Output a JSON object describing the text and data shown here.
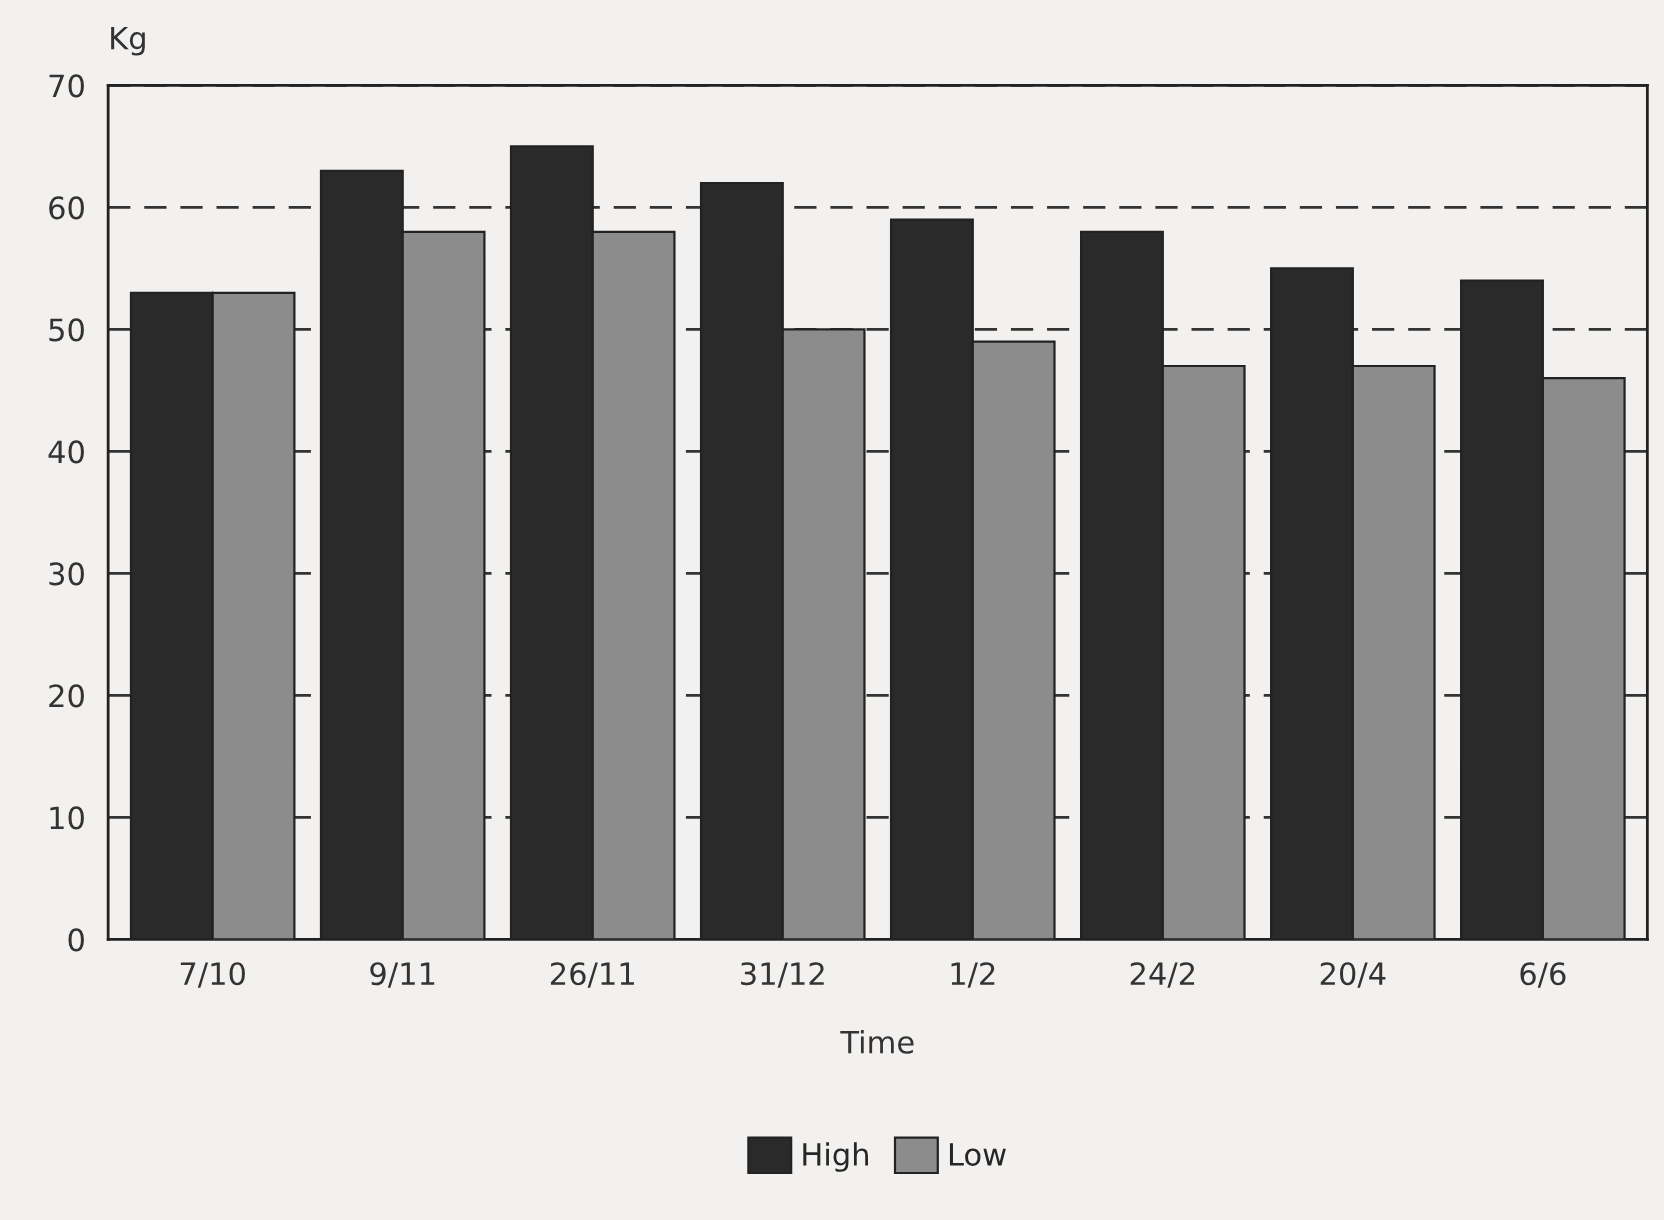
{
  "chart_data": {
    "type": "bar",
    "xlabel": "Time",
    "ylabel": "Kg",
    "categories": [
      "7/10",
      "9/11",
      "26/11",
      "31/12",
      "1/2",
      "24/2",
      "20/4",
      "6/6"
    ],
    "series": [
      {
        "name": "High",
        "color": "#2a2a2a",
        "values": [
          53,
          63,
          65,
          62,
          59,
          58,
          55,
          54
        ]
      },
      {
        "name": "Low",
        "color": "#8c8c8c",
        "values": [
          53,
          58,
          58,
          50,
          49,
          47,
          47,
          46
        ]
      }
    ],
    "ylim": [
      0,
      70
    ],
    "yticks": [
      0,
      10,
      20,
      30,
      40,
      50,
      60,
      70
    ],
    "grid": "y",
    "legend": "bottom"
  }
}
